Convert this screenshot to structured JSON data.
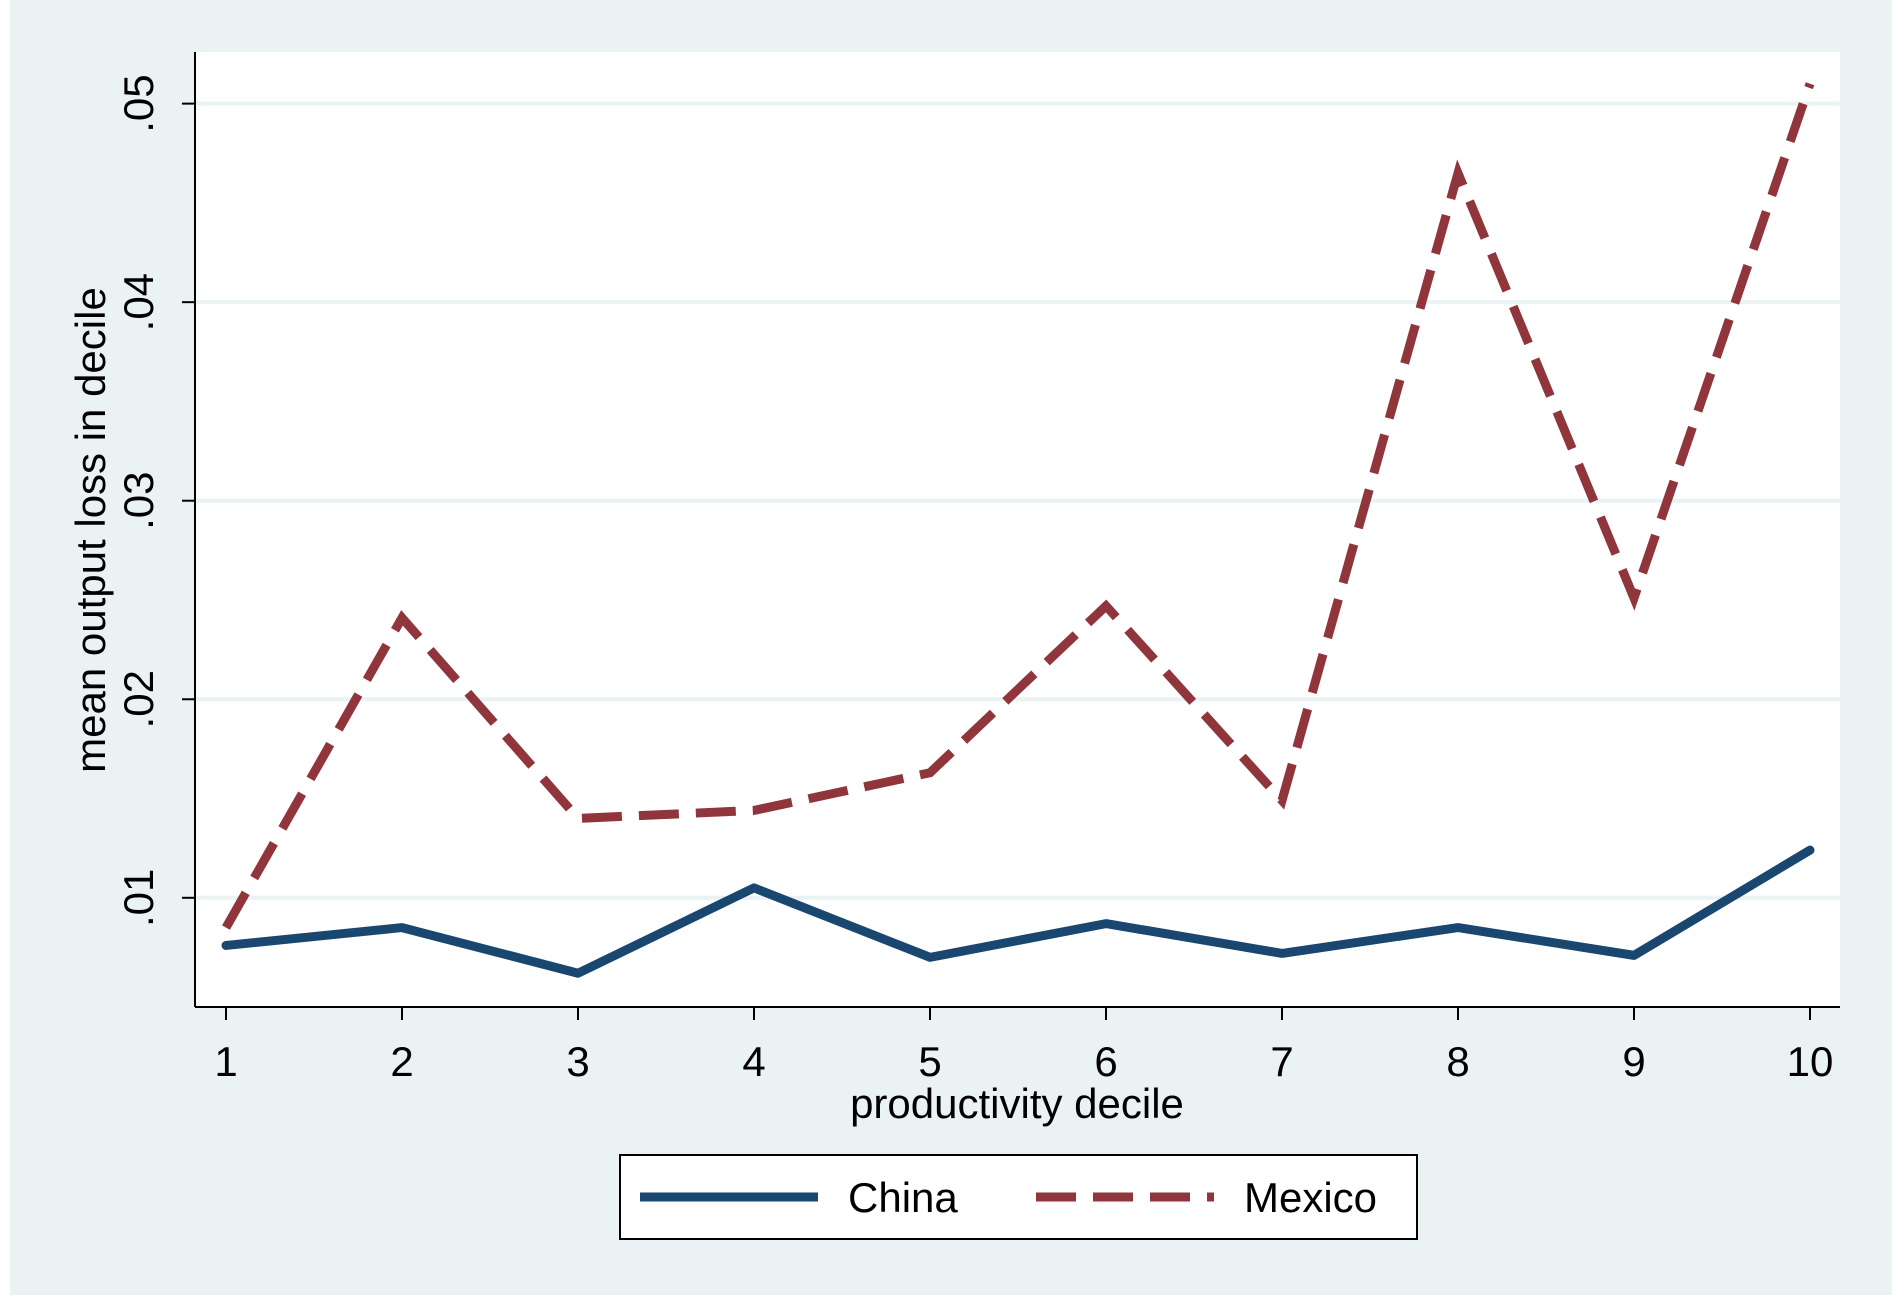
{
  "chart_data": {
    "type": "line",
    "x": [
      1,
      2,
      3,
      4,
      5,
      6,
      7,
      8,
      9,
      10
    ],
    "series": [
      {
        "name": "China",
        "values": [
          0.0076,
          0.0085,
          0.0062,
          0.0105,
          0.007,
          0.0087,
          0.0072,
          0.0085,
          0.0071,
          0.0124
        ],
        "color": "#1a476f",
        "style": "solid"
      },
      {
        "name": "Mexico",
        "values": [
          0.0085,
          0.0241,
          0.014,
          0.0144,
          0.0163,
          0.0247,
          0.0149,
          0.0465,
          0.0251,
          0.051
        ],
        "color": "#90353b",
        "style": "dashed"
      }
    ],
    "xlabel": "productivity decile",
    "ylabel": "mean output loss in decile",
    "xticks": [
      "1",
      "2",
      "3",
      "4",
      "5",
      "6",
      "7",
      "8",
      "9",
      "10"
    ],
    "yticks": [
      ".01",
      ".02",
      ".03",
      ".04",
      ".05"
    ],
    "ytick_values": [
      0.01,
      0.02,
      0.03,
      0.04,
      0.05
    ],
    "xlim": [
      1,
      10
    ],
    "ylim": [
      0.0045,
      0.0526
    ],
    "grid": "horizontal",
    "legend_position": "bottom",
    "colors": {
      "page_background": "#eaf2f3",
      "plot_background": "#ffffff",
      "grid": "#eaf2f3",
      "axis": "#000000"
    }
  }
}
